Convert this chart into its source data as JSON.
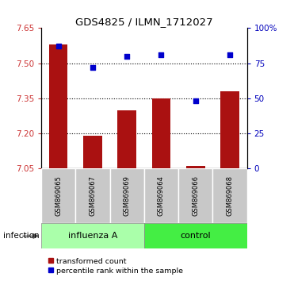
{
  "title": "GDS4825 / ILMN_1712027",
  "samples": [
    "GSM869065",
    "GSM869067",
    "GSM869069",
    "GSM869064",
    "GSM869066",
    "GSM869068"
  ],
  "bar_values": [
    7.58,
    7.19,
    7.3,
    7.35,
    7.06,
    7.38
  ],
  "dot_values": [
    87,
    72,
    80,
    81,
    48,
    81
  ],
  "ylim_left": [
    7.05,
    7.65
  ],
  "ylim_right": [
    0,
    100
  ],
  "yticks_left": [
    7.05,
    7.2,
    7.35,
    7.5,
    7.65
  ],
  "yticks_right": [
    0,
    25,
    50,
    75,
    100
  ],
  "bar_color": "#AA1111",
  "dot_color": "#0000CC",
  "influenza_color": "#AAFFAA",
  "control_color": "#44EE44",
  "tick_color_left": "#CC3333",
  "tick_color_right": "#0000BB",
  "bar_width": 0.55,
  "baseline": 7.05,
  "infection_label": "infection",
  "legend_red_label": "transformed count",
  "legend_blue_label": "percentile rank within the sample",
  "influenza_samples": [
    0,
    1,
    2
  ],
  "control_samples": [
    3,
    4,
    5
  ]
}
